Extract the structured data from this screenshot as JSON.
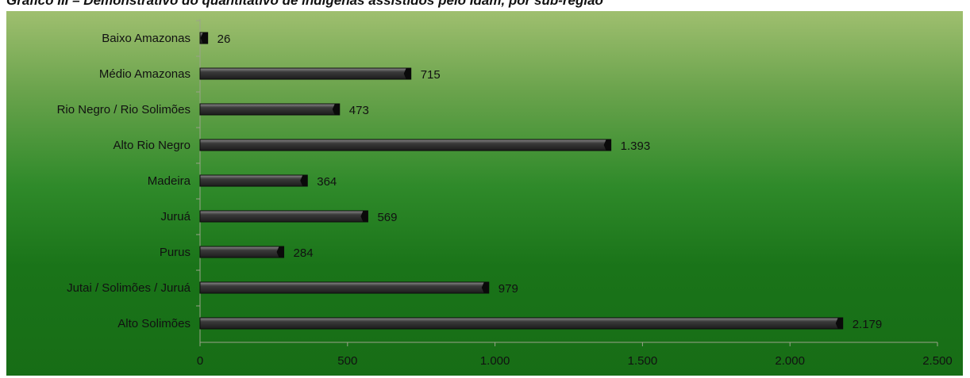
{
  "header": {
    "title": "Gráfico III – Demonstrativo do quantitativo de indígenas assistidos pelo Idam, por sub-região"
  },
  "chart_data": {
    "type": "bar",
    "orientation": "horizontal",
    "title": "Gráfico III – Demonstrativo do quantitativo de indígenas assistidos pelo Idam, por sub-região",
    "categories": [
      "Baixo Amazonas",
      "Médio Amazonas",
      "Rio Negro / Rio Solimões",
      "Alto Rio Negro",
      "Madeira",
      "Juruá",
      "Purus",
      "Jutai / Solimões / Juruá",
      "Alto Solimões"
    ],
    "values": [
      26,
      715,
      473,
      1393,
      364,
      569,
      284,
      979,
      2179
    ],
    "value_labels": [
      "26",
      "715",
      "473",
      "1.393",
      "364",
      "569",
      "284",
      "979",
      "2.179"
    ],
    "xlim": [
      0,
      2500
    ],
    "x_ticks": [
      0,
      500,
      1000,
      1500,
      2000,
      2500
    ],
    "x_tick_labels": [
      "0",
      "500",
      "1.000",
      "1.500",
      "2.000",
      "2.500"
    ],
    "xlabel": "",
    "ylabel": "",
    "grid": false,
    "legend": "none",
    "colors": {
      "bar": "#1c1c1c",
      "bar_highlight": "#8a8a8a",
      "background_top": "#9fbf6f",
      "background_bottom": "#176d16",
      "axis": "#9aa38a",
      "text": "#111111"
    }
  }
}
